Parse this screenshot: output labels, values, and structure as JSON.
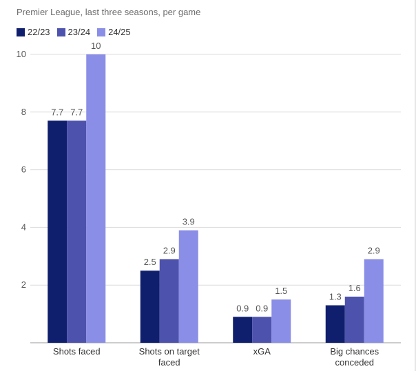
{
  "chart_data": {
    "type": "bar",
    "subtitle": "Premier League, last three seasons, per game",
    "categories": [
      "Shots faced",
      "Shots on target faced",
      "xGA",
      "Big chances conceded"
    ],
    "category_lines": [
      [
        "Shots faced"
      ],
      [
        "Shots on target",
        "faced"
      ],
      [
        "xGA"
      ],
      [
        "Big chances",
        "conceded"
      ]
    ],
    "series": [
      {
        "name": "22/23",
        "color": "#0f1f6e",
        "values": [
          7.7,
          2.5,
          0.9,
          1.3
        ],
        "labels": [
          "7.7",
          "2.5",
          "0.9",
          "1.3"
        ]
      },
      {
        "name": "23/24",
        "color": "#4d52ad",
        "values": [
          7.7,
          2.9,
          0.9,
          1.6
        ],
        "labels": [
          "7.7",
          "2.9",
          "0.9",
          "1.6"
        ]
      },
      {
        "name": "24/25",
        "color": "#8a8ee6",
        "values": [
          10,
          3.9,
          1.5,
          2.9
        ],
        "labels": [
          "10",
          "3.9",
          "1.5",
          "2.9"
        ]
      }
    ],
    "ylim": [
      0,
      10.5
    ],
    "yticks": [
      2,
      4,
      6,
      8,
      10
    ],
    "ytick_labels": [
      "2",
      "4",
      "6",
      "8",
      "10"
    ],
    "grid": true,
    "legend": "top-left"
  }
}
